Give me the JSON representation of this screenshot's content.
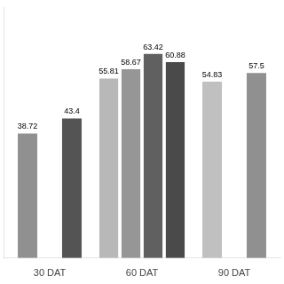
{
  "chart_data": {
    "type": "bar",
    "categories": [
      "30 DAT",
      "60 DAT",
      "90 DAT"
    ],
    "series": [
      {
        "values": [
          38.72,
          55.81,
          54.83
        ],
        "colors": [
          "#909090",
          "#b8b8b8",
          "#c0c0c0"
        ]
      },
      {
        "values": [
          43.4,
          58.67,
          57.5
        ],
        "colors": [
          "#545454",
          "#969696",
          "#909090"
        ]
      },
      {
        "values": [
          null,
          63.42,
          null
        ],
        "colors": [
          null,
          "#606060",
          null
        ]
      },
      {
        "values": [
          null,
          60.88,
          null
        ],
        "colors": [
          null,
          "#4a4a4a",
          null
        ]
      }
    ],
    "ylim": [
      0,
      78
    ],
    "grid": false,
    "data_labels": true,
    "tick_labels": "x"
  }
}
